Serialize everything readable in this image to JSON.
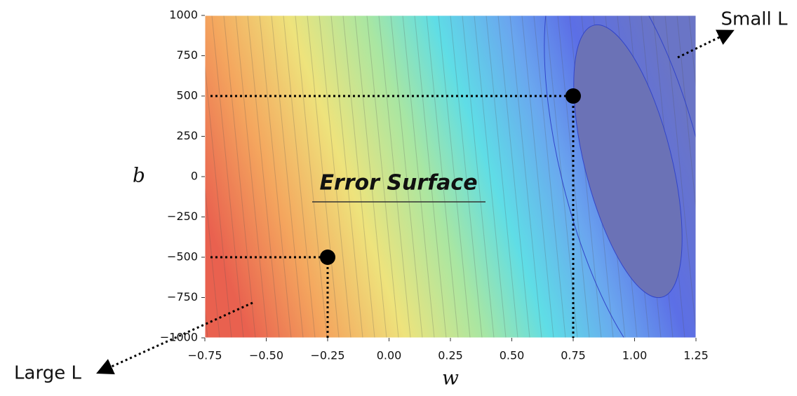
{
  "chart_data": {
    "type": "contour",
    "xlabel": "w",
    "ylabel": "b",
    "xlim": [
      -0.75,
      1.25
    ],
    "ylim": [
      -1000,
      1000
    ],
    "xticks": [
      {
        "value": -0.75,
        "label": "−0.75"
      },
      {
        "value": -0.5,
        "label": "−0.50"
      },
      {
        "value": -0.25,
        "label": "−0.25"
      },
      {
        "value": 0,
        "label": "0.00"
      },
      0.25,
      {
        "value": 0.5,
        "label": "0.50"
      },
      0.75,
      {
        "value": 1,
        "label": "1.00"
      },
      1.25
    ],
    "yticks": [
      {
        "value": -1000,
        "label": "−1000"
      },
      {
        "value": -750,
        "label": "−750"
      },
      {
        "value": -500,
        "label": "−500"
      },
      {
        "value": -250,
        "label": "−250"
      },
      0,
      250,
      500,
      750,
      1000
    ],
    "points": {
      "x": [
        -0.25,
        0.75
      ],
      "y": [
        -500,
        500
      ],
      "color": "#000000"
    },
    "annotations": {
      "title": "Error Surface",
      "small": "Small L",
      "large": "Large L"
    }
  }
}
